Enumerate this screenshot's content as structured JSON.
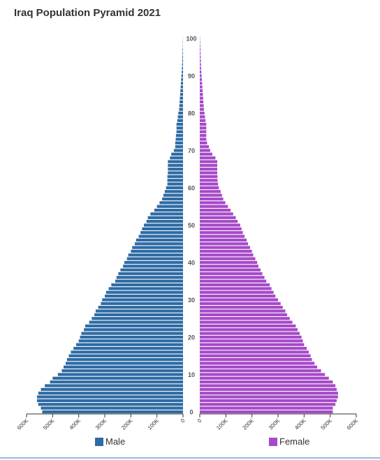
{
  "chart_data": {
    "type": "bar",
    "title": "Iraq Population Pyramid 2021",
    "orientation": "horizontal-mirrored",
    "age_ticks": [
      0,
      10,
      20,
      30,
      40,
      50,
      60,
      70,
      80,
      90,
      100
    ],
    "x_ticks": [
      {
        "value": 0,
        "label": "0"
      },
      {
        "value": 100000,
        "label": "100K"
      },
      {
        "value": 200000,
        "label": "200K"
      },
      {
        "value": 300000,
        "label": "300K"
      },
      {
        "value": 400000,
        "label": "400K"
      },
      {
        "value": 500000,
        "label": "500K"
      },
      {
        "value": 600000,
        "label": "600K"
      }
    ],
    "xlim": [
      0,
      600000
    ],
    "ages": [
      0,
      1,
      2,
      3,
      4,
      5,
      6,
      7,
      8,
      9,
      10,
      11,
      12,
      13,
      14,
      15,
      16,
      17,
      18,
      19,
      20,
      21,
      22,
      23,
      24,
      25,
      26,
      27,
      28,
      29,
      30,
      31,
      32,
      33,
      34,
      35,
      36,
      37,
      38,
      39,
      40,
      41,
      42,
      43,
      44,
      45,
      46,
      47,
      48,
      49,
      50,
      51,
      52,
      53,
      54,
      55,
      56,
      57,
      58,
      59,
      60,
      61,
      62,
      63,
      64,
      65,
      66,
      67,
      68,
      69,
      70,
      71,
      72,
      73,
      74,
      75,
      76,
      77,
      78,
      79,
      80,
      81,
      82,
      83,
      84,
      85,
      86,
      87,
      88,
      89,
      90,
      91,
      92,
      93,
      94,
      95,
      96,
      97,
      98,
      99,
      100
    ],
    "series": [
      {
        "name": "Male",
        "color": "#2e6ba4",
        "values": [
          540000,
          545000,
          555000,
          560000,
          560000,
          555000,
          545000,
          530000,
          510000,
          500000,
          480000,
          465000,
          458000,
          450000,
          445000,
          438000,
          430000,
          420000,
          410000,
          400000,
          395000,
          390000,
          380000,
          375000,
          360000,
          350000,
          340000,
          335000,
          325000,
          315000,
          310000,
          300000,
          295000,
          285000,
          275000,
          260000,
          255000,
          248000,
          240000,
          230000,
          225000,
          215000,
          210000,
          200000,
          195000,
          185000,
          180000,
          170000,
          163000,
          157000,
          150000,
          140000,
          135000,
          125000,
          110000,
          100000,
          90000,
          80000,
          75000,
          70000,
          65000,
          60000,
          60000,
          60000,
          58000,
          58000,
          58000,
          58000,
          50000,
          45000,
          35000,
          30000,
          30000,
          28000,
          27000,
          25000,
          25000,
          25000,
          22000,
          20000,
          18000,
          15000,
          14000,
          13000,
          12000,
          11000,
          10000,
          9000,
          8000,
          7000,
          6000,
          5000,
          4000,
          3500,
          3000,
          2500,
          2000,
          1500,
          1000,
          800,
          500
        ]
      },
      {
        "name": "Female",
        "color": "#a64ac9",
        "values": [
          510000,
          510000,
          520000,
          525000,
          530000,
          530000,
          525000,
          520000,
          510000,
          495000,
          480000,
          465000,
          450000,
          440000,
          430000,
          425000,
          418000,
          410000,
          400000,
          395000,
          390000,
          383000,
          375000,
          368000,
          355000,
          345000,
          335000,
          328000,
          318000,
          310000,
          300000,
          290000,
          283000,
          275000,
          268000,
          255000,
          248000,
          240000,
          233000,
          225000,
          220000,
          213000,
          205000,
          200000,
          193000,
          185000,
          180000,
          172000,
          165000,
          160000,
          155000,
          145000,
          138000,
          128000,
          118000,
          108000,
          98000,
          90000,
          85000,
          80000,
          73000,
          70000,
          68000,
          68000,
          67000,
          67000,
          67000,
          67000,
          60000,
          48000,
          40000,
          35000,
          28000,
          25000,
          25000,
          25000,
          25000,
          25000,
          22000,
          20000,
          18000,
          16000,
          15000,
          14000,
          13000,
          12000,
          11000,
          10000,
          9000,
          8000,
          7000,
          6000,
          5000,
          4500,
          4000,
          3500,
          3000,
          2500,
          2000,
          1500,
          1000
        ]
      }
    ],
    "legend": {
      "position": "bottom",
      "labels": [
        "Male",
        "Female"
      ]
    }
  }
}
